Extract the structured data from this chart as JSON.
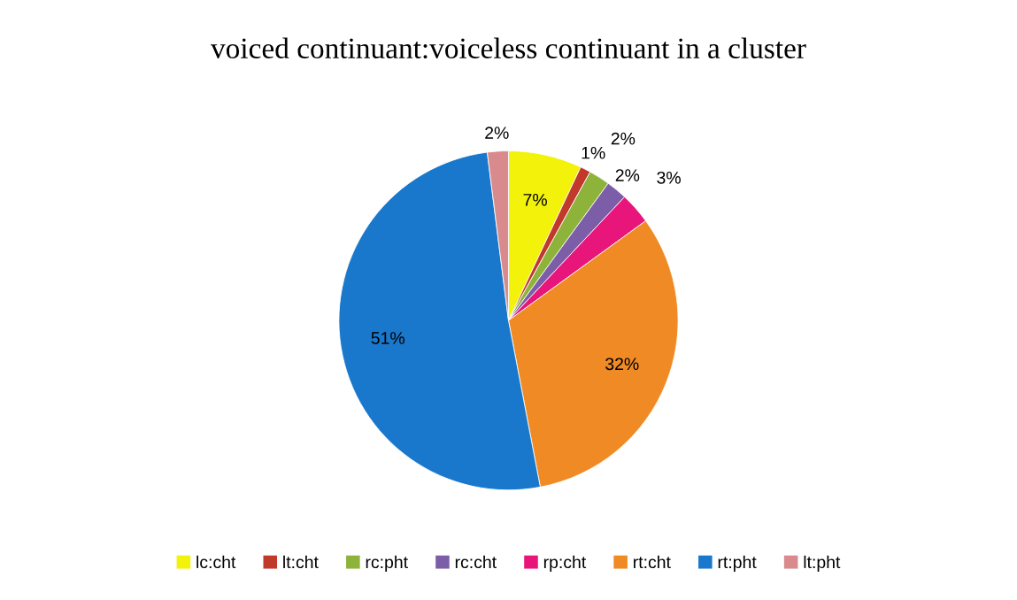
{
  "chart_data": {
    "type": "pie",
    "title": "voiced continuant:voiceless continuant in a cluster",
    "categories": [
      "lc:cht",
      "lt:cht",
      "rc:pht",
      "rc:cht",
      "rp:cht",
      "rt:cht",
      "rt:pht",
      "lt:pht"
    ],
    "values": [
      7,
      1,
      2,
      2,
      3,
      32,
      51,
      2
    ],
    "value_labels": [
      "7%",
      "1%",
      "2%",
      "2%",
      "3%",
      "32%",
      "51%",
      "2%"
    ],
    "colors": [
      "#f2f20a",
      "#c0392b",
      "#8db33a",
      "#7c5ea8",
      "#e8157a",
      "#f08a24",
      "#1a78cc",
      "#d98a8c"
    ],
    "legend": "bottom"
  }
}
